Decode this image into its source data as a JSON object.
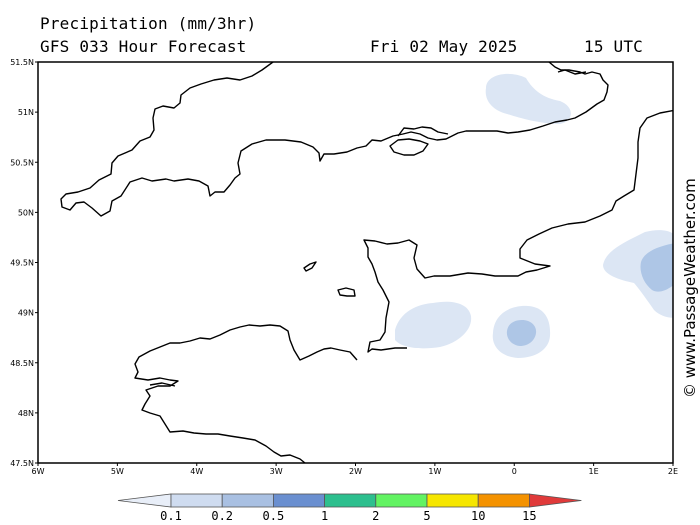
{
  "header": {
    "title": "Precipitation (mm/3hr)",
    "subtitle": "GFS 033 Hour Forecast",
    "date": "Fri 02 May 2025",
    "time": "15 UTC"
  },
  "watermark": "© www.PassageWeather.com",
  "map": {
    "lon_range": [
      -6,
      2
    ],
    "lat_range": [
      47.5,
      51.5
    ],
    "x_ticks": [
      "6W",
      "5W",
      "4W",
      "3W",
      "2W",
      "1W",
      "0",
      "1E",
      "2E"
    ],
    "y_ticks": [
      "51.5N",
      "51N",
      "50.5N",
      "50N",
      "49.5N",
      "49N",
      "48.5N",
      "48N",
      "47.5N"
    ],
    "precip_areas": [
      {
        "name": "north-sea-area",
        "level": "0.1-0.2",
        "color": "#dce6f4"
      },
      {
        "name": "east-area-outer",
        "level": "0.1-0.2",
        "color": "#dce6f4"
      },
      {
        "name": "east-area-core",
        "level": "0.2-0.5",
        "color": "#aec6e6"
      },
      {
        "name": "cotentin-area",
        "level": "0.1-0.2",
        "color": "#dce6f4"
      },
      {
        "name": "channel-area-outer",
        "level": "0.1-0.2",
        "color": "#dce6f4"
      },
      {
        "name": "channel-area-core",
        "level": "0.2-0.5",
        "color": "#aec6e6"
      }
    ]
  },
  "legend": {
    "labels": [
      "0.1",
      "0.2",
      "0.5",
      "1",
      "2",
      "5",
      "10",
      "15"
    ],
    "colors": [
      "#e8eef8",
      "#cfdcf0",
      "#a9c0e2",
      "#6a8fd0",
      "#2dbf8e",
      "#62f362",
      "#f6e600",
      "#f49200",
      "#e03a3a"
    ]
  }
}
